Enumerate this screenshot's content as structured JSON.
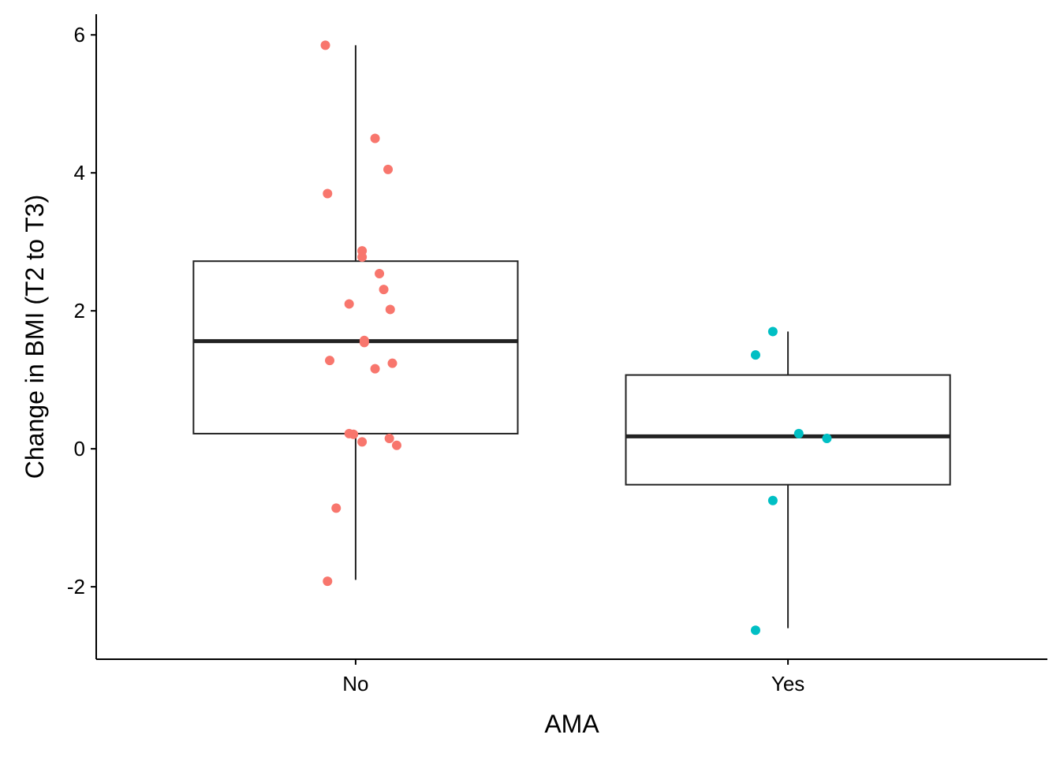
{
  "chart_data": {
    "type": "box",
    "xlabel": "AMA",
    "ylabel": "Change in BMI (T2 to T3)",
    "categories": [
      "No",
      "Yes"
    ],
    "ylim": [
      -3.05,
      6.3
    ],
    "yticks": [
      -2,
      0,
      2,
      4,
      6
    ],
    "ytick_labels": [
      "-2",
      "0",
      "2",
      "4",
      "6"
    ],
    "grid": false,
    "legend": "none",
    "colors": {
      "No": "#F8766D",
      "Yes": "#00BFC4",
      "box": "#222222"
    },
    "boxes": [
      {
        "category": "No",
        "whisker_low": -1.9,
        "q1": 0.22,
        "median": 1.56,
        "q3": 2.72,
        "whisker_high": 5.85
      },
      {
        "category": "Yes",
        "whisker_low": -2.6,
        "q1": -0.52,
        "median": 0.18,
        "q3": 1.07,
        "whisker_high": 1.7
      }
    ],
    "points": [
      {
        "category": "No",
        "jitter": -0.07,
        "y": 5.85
      },
      {
        "category": "No",
        "jitter": 0.045,
        "y": 4.5
      },
      {
        "category": "No",
        "jitter": 0.075,
        "y": 4.05
      },
      {
        "category": "No",
        "jitter": -0.065,
        "y": 3.7
      },
      {
        "category": "No",
        "jitter": 0.015,
        "y": 2.87
      },
      {
        "category": "No",
        "jitter": 0.015,
        "y": 2.78
      },
      {
        "category": "No",
        "jitter": 0.055,
        "y": 2.54
      },
      {
        "category": "No",
        "jitter": 0.065,
        "y": 2.31
      },
      {
        "category": "No",
        "jitter": -0.015,
        "y": 2.1
      },
      {
        "category": "No",
        "jitter": 0.08,
        "y": 2.02
      },
      {
        "category": "No",
        "jitter": 0.02,
        "y": 1.57
      },
      {
        "category": "No",
        "jitter": 0.02,
        "y": 1.54
      },
      {
        "category": "No",
        "jitter": -0.06,
        "y": 1.28
      },
      {
        "category": "No",
        "jitter": 0.085,
        "y": 1.24
      },
      {
        "category": "No",
        "jitter": 0.045,
        "y": 1.16
      },
      {
        "category": "No",
        "jitter": -0.015,
        "y": 0.22
      },
      {
        "category": "No",
        "jitter": -0.005,
        "y": 0.21
      },
      {
        "category": "No",
        "jitter": 0.078,
        "y": 0.15
      },
      {
        "category": "No",
        "jitter": 0.015,
        "y": 0.1
      },
      {
        "category": "No",
        "jitter": 0.095,
        "y": 0.05
      },
      {
        "category": "No",
        "jitter": -0.045,
        "y": -0.86
      },
      {
        "category": "No",
        "jitter": -0.065,
        "y": -1.92
      },
      {
        "category": "Yes",
        "jitter": -0.035,
        "y": 1.7
      },
      {
        "category": "Yes",
        "jitter": -0.075,
        "y": 1.36
      },
      {
        "category": "Yes",
        "jitter": 0.025,
        "y": 0.22
      },
      {
        "category": "Yes",
        "jitter": 0.09,
        "y": 0.15
      },
      {
        "category": "Yes",
        "jitter": -0.035,
        "y": -0.75
      },
      {
        "category": "Yes",
        "jitter": -0.075,
        "y": -2.63
      }
    ]
  }
}
